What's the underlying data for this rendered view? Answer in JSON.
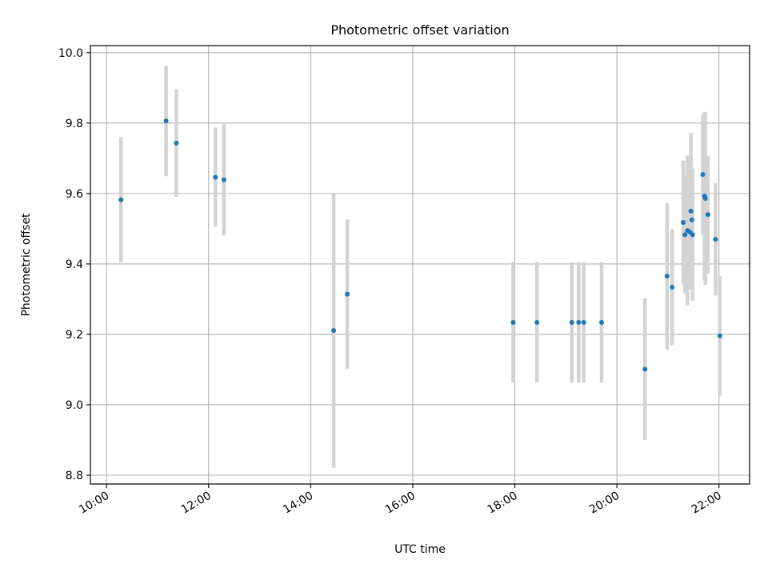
{
  "chart_data": {
    "type": "scatter",
    "title": "Photometric offset variation",
    "xlabel": "UTC time",
    "ylabel": "Photometric offset",
    "xlim": [
      "09:41",
      "22:36"
    ],
    "ylim": [
      8.775,
      10.02
    ],
    "x_ticks": [
      "10:00",
      "12:00",
      "14:00",
      "16:00",
      "18:00",
      "20:00",
      "22:00"
    ],
    "y_ticks": [
      "8.8",
      "9.0",
      "9.2",
      "9.4",
      "9.6",
      "9.8",
      "10.0"
    ],
    "grid": true,
    "legend": "none",
    "colors": {
      "point": "#1f77b4",
      "errorbar": "#d3d3d3",
      "grid": "#b0b0b0"
    },
    "points": [
      {
        "t": "10:17",
        "y": 9.582,
        "err": 0.178
      },
      {
        "t": "11:10",
        "y": 9.806,
        "err": 0.157
      },
      {
        "t": "11:22",
        "y": 9.743,
        "err": 0.153
      },
      {
        "t": "12:08",
        "y": 9.646,
        "err": 0.141
      },
      {
        "t": "12:18",
        "y": 9.639,
        "err": 0.158
      },
      {
        "t": "14:27",
        "y": 9.211,
        "err": 0.39
      },
      {
        "t": "14:43",
        "y": 9.314,
        "err": 0.212
      },
      {
        "t": "17:58",
        "y": 9.234,
        "err": 0.171
      },
      {
        "t": "18:26",
        "y": 9.234,
        "err": 0.171
      },
      {
        "t": "19:07",
        "y": 9.234,
        "err": 0.171
      },
      {
        "t": "19:15",
        "y": 9.234,
        "err": 0.171
      },
      {
        "t": "19:21",
        "y": 9.234,
        "err": 0.171
      },
      {
        "t": "19:42",
        "y": 9.234,
        "err": 0.171
      },
      {
        "t": "20:33",
        "y": 9.101,
        "err": 0.201
      },
      {
        "t": "20:59",
        "y": 9.365,
        "err": 0.208
      },
      {
        "t": "21:05",
        "y": 9.334,
        "err": 0.165
      },
      {
        "t": "21:18",
        "y": 9.518,
        "err": 0.175
      },
      {
        "t": "21:20",
        "y": 9.483,
        "err": 0.167
      },
      {
        "t": "21:23",
        "y": 9.495,
        "err": 0.213
      },
      {
        "t": "21:26",
        "y": 9.49,
        "err": 0.15
      },
      {
        "t": "21:27",
        "y": 9.55,
        "err": 0.222
      },
      {
        "t": "21:28",
        "y": 9.525,
        "err": 0.146
      },
      {
        "t": "21:29",
        "y": 9.483,
        "err": 0.188
      },
      {
        "t": "21:41",
        "y": 9.654,
        "err": 0.171
      },
      {
        "t": "21:43",
        "y": 9.593,
        "err": 0.238
      },
      {
        "t": "21:44",
        "y": 9.586,
        "err": 0.246
      },
      {
        "t": "21:47",
        "y": 9.54,
        "err": 0.167
      },
      {
        "t": "21:56",
        "y": 9.47,
        "err": 0.16
      },
      {
        "t": "22:01",
        "y": 9.196,
        "err": 0.17
      }
    ]
  }
}
